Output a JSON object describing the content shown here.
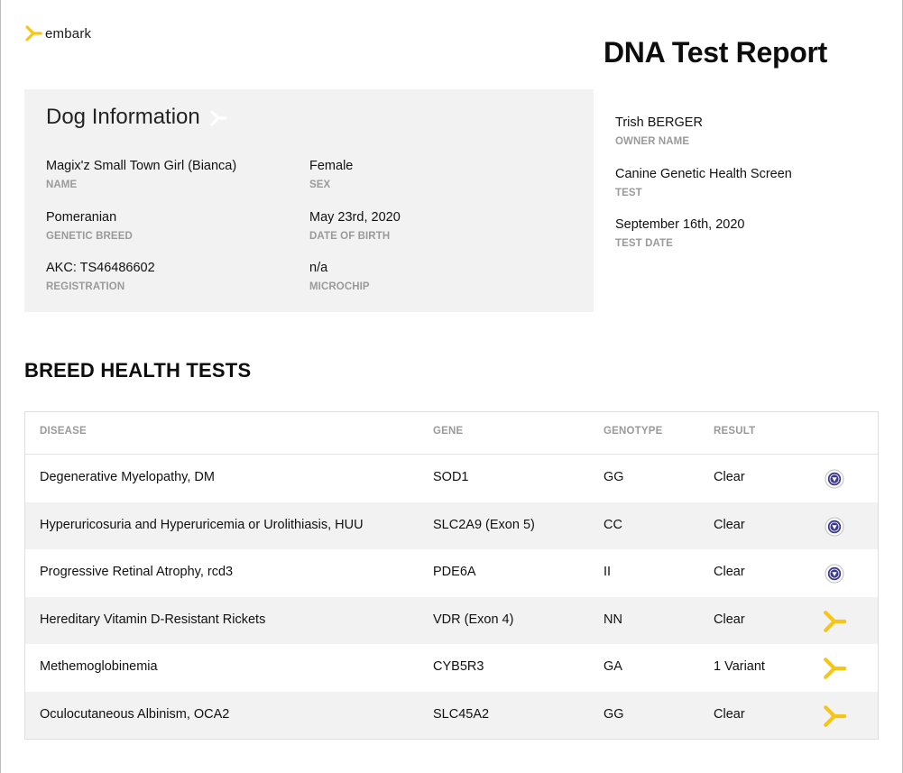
{
  "brand": {
    "name": "embark",
    "accent": "#f5c518"
  },
  "report_title": "DNA Test Report",
  "dog_info": {
    "heading": "Dog Information",
    "fields": [
      {
        "value": "Magix'z Small Town Girl (Bianca)",
        "label": "NAME"
      },
      {
        "value": "Female",
        "label": "SEX"
      },
      {
        "value": "Pomeranian",
        "label": "GENETIC BREED"
      },
      {
        "value": "May 23rd, 2020",
        "label": "DATE OF BIRTH"
      },
      {
        "value": "AKC: TS46486602",
        "label": "REGISTRATION"
      },
      {
        "value": "n/a",
        "label": "MICROCHIP"
      }
    ]
  },
  "owner_info": [
    {
      "value": "Trish BERGER",
      "label": "OWNER NAME"
    },
    {
      "value": "Canine Genetic Health Screen",
      "label": "TEST"
    },
    {
      "value": "September 16th, 2020",
      "label": "TEST DATE"
    }
  ],
  "section_title": "BREED HEALTH TESTS",
  "table": {
    "headers": {
      "disease": "DISEASE",
      "gene": "GENE",
      "genotype": "GENOTYPE",
      "result": "RESULT"
    },
    "rows": [
      {
        "disease": "Degenerative Myelopathy, DM",
        "gene": "SOD1",
        "genotype": "GG",
        "result": "Clear",
        "icon": "ofa-seal-icon"
      },
      {
        "disease": "Hyperuricosuria and Hyperuricemia or Urolithiasis, HUU",
        "gene": "SLC2A9 (Exon 5)",
        "genotype": "CC",
        "result": "Clear",
        "icon": "ofa-seal-icon"
      },
      {
        "disease": "Progressive Retinal Atrophy, rcd3",
        "gene": "PDE6A",
        "genotype": "II",
        "result": "Clear",
        "icon": "ofa-seal-icon"
      },
      {
        "disease": "Hereditary Vitamin D-Resistant Rickets",
        "gene": "VDR (Exon 4)",
        "genotype": "NN",
        "result": "Clear",
        "icon": "embark-logo-icon"
      },
      {
        "disease": "Methemoglobinemia",
        "gene": "CYB5R3",
        "genotype": "GA",
        "result": "1 Variant",
        "icon": "embark-logo-icon"
      },
      {
        "disease": "Oculocutaneous Albinism, OCA2",
        "gene": "SLC45A2",
        "genotype": "GG",
        "result": "Clear",
        "icon": "embark-logo-icon"
      }
    ]
  }
}
